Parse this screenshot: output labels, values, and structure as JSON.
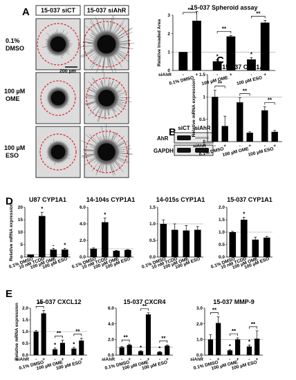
{
  "colors": {
    "bar": "#000000",
    "ref_line": "#999999",
    "dashed_circle": "#e02020",
    "micrograph_bg": "#dcdcdc"
  },
  "panel_labels": [
    "A",
    "B",
    "C",
    "D",
    "E"
  ],
  "panel_a": {
    "column_headers": [
      "15-037 siCT",
      "15-037 siAhR"
    ],
    "row_labels": [
      [
        "0.1%",
        "DMSO"
      ],
      [
        "100 µM",
        "OME"
      ],
      [
        "100 µM",
        "ESO"
      ]
    ],
    "scale_bar": "200 µm"
  },
  "panel_b": {
    "columns": [
      "siCT",
      "siAhR"
    ],
    "rows": [
      "AhR",
      "GAPDH"
    ]
  },
  "chart_data": [
    {
      "id": "spheroid",
      "type": "bar",
      "title": "15-037 Spheroid  assay",
      "ylabel": "Relative Invaded Area",
      "ylim": [
        0,
        3
      ],
      "yticks": [
        0,
        1,
        2,
        3
      ],
      "refline": 1,
      "groups": [
        "0.1% DMSO",
        "100 µM OME",
        "100 µM ESO"
      ],
      "si_label": "siAhR",
      "si_marks": [
        "-",
        "+"
      ],
      "values": [
        1.0,
        2.7,
        0.5,
        1.85,
        0.6,
        2.6
      ],
      "errors": [
        0,
        0.5,
        0.08,
        0.05,
        0.1,
        0.12
      ],
      "stars": [
        "",
        "",
        "*",
        "",
        "*",
        ""
      ],
      "brackets": [
        {
          "from": 0,
          "to": 1,
          "label": "**"
        },
        {
          "from": 2,
          "to": 3,
          "label": "**"
        },
        {
          "from": 4,
          "to": 5,
          "label": "**"
        }
      ]
    },
    {
      "id": "c_cyp1a1",
      "type": "bar",
      "title": "15-037 CYP1A1",
      "ylabel": "Relative mRNA expression",
      "ylim": [
        0,
        1.5
      ],
      "yticks": [
        0,
        0.5,
        1,
        1.5
      ],
      "refline": 1,
      "groups": [
        "0.1% DMSO",
        "100 µM OME",
        "100 µM ESO"
      ],
      "si_label": "siAhR",
      "si_marks": [
        "-",
        "+"
      ],
      "values": [
        1.0,
        0.35,
        0.88,
        0.2,
        0.7,
        0.22
      ],
      "errors": [
        0.15,
        0.22,
        0.1,
        0.02,
        0.08,
        0.03
      ],
      "stars": [
        "",
        "",
        "",
        "",
        "",
        ""
      ],
      "brackets": [
        {
          "from": 0,
          "to": 1,
          "label": "**"
        },
        {
          "from": 2,
          "to": 3,
          "label": "**"
        },
        {
          "from": 4,
          "to": 5,
          "label": "**"
        }
      ]
    },
    {
      "id": "d_u87",
      "type": "bar",
      "title": "U87 CYP1A1",
      "ylabel": "Relative mRNA expression",
      "ylim": [
        0,
        20
      ],
      "yticks": [
        0,
        5,
        10,
        15,
        20
      ],
      "refline": 1,
      "categories": [
        "0.1% DMSO",
        "10 nM TCDD",
        "100 µM OME",
        "100 µM ESO"
      ],
      "values": [
        1.0,
        16.5,
        3.0,
        3.0
      ],
      "errors": [
        0,
        1.5,
        0.5,
        0.5
      ],
      "stars": [
        "",
        "*",
        "-",
        "*"
      ]
    },
    {
      "id": "d_14104s",
      "type": "bar",
      "title": "14-104s CYP1A1",
      "ylim": [
        0,
        6
      ],
      "yticks": [
        0.0,
        2.0,
        4.0,
        6.0
      ],
      "tick_decimals": 1,
      "refline": 1,
      "categories": [
        "0.1% DMSO",
        "10 nM TCDD",
        "100 µM OME",
        "100 µM ESO"
      ],
      "values": [
        1.0,
        4.2,
        0.75,
        0.85
      ],
      "errors": [
        0.1,
        0.5,
        0.05,
        0.05
      ],
      "stars": [
        "",
        "*",
        "",
        ""
      ]
    },
    {
      "id": "d_14015s",
      "type": "bar",
      "title": "14-015s CYP1A1",
      "ylim": [
        0,
        1.5
      ],
      "yticks": [
        0.0,
        0.5,
        1.0,
        1.5
      ],
      "tick_decimals": 1,
      "refline": 1,
      "categories": [
        "0.1% DMSO",
        "10 nM TCDD",
        "100 µM OME",
        "100 µM ESO"
      ],
      "values": [
        1.0,
        0.82,
        0.8,
        0.82
      ],
      "errors": [
        0.12,
        0.18,
        0.15,
        0.1
      ],
      "stars": [
        "",
        "",
        "",
        ""
      ]
    },
    {
      "id": "d_15037",
      "type": "bar",
      "title": "15-037 CYP1A1",
      "ylim": [
        0,
        2
      ],
      "yticks": [
        0.0,
        0.5,
        1.0,
        1.5,
        2.0
      ],
      "tick_decimals": 1,
      "refline": 1,
      "categories": [
        "0.1% DMSO",
        "10 nM TCDD",
        "100 µM OME",
        "100 µM ESO"
      ],
      "values": [
        1.0,
        1.5,
        0.7,
        0.78
      ],
      "errors": [
        0.03,
        0.1,
        0.1,
        0.05
      ],
      "stars": [
        "",
        "*",
        "",
        ""
      ]
    },
    {
      "id": "e_cxcl12",
      "type": "bar",
      "title": "15-037 CXCL12",
      "ylabel": "Relative mRNA expression",
      "ylim": [
        0,
        2
      ],
      "yticks": [
        0.0,
        0.5,
        1.0,
        1.5,
        2.0
      ],
      "tick_decimals": 1,
      "refline": 1,
      "groups": [
        "0.1% DMSO",
        "100 µM OME",
        "100 µM ESO"
      ],
      "si_label": "siAhR",
      "si_marks": [
        "-",
        "+"
      ],
      "values": [
        1.0,
        1.78,
        0.25,
        0.52,
        0.28,
        0.62
      ],
      "errors": [
        0.05,
        0.12,
        0.05,
        0.12,
        0.05,
        0.1
      ],
      "stars": [
        "",
        "",
        "*",
        "",
        "*",
        ""
      ],
      "brackets": [
        {
          "from": 0,
          "to": 1,
          "label": "**"
        },
        {
          "from": 2,
          "to": 3,
          "label": "**"
        },
        {
          "from": 4,
          "to": 5,
          "label": "**"
        }
      ]
    },
    {
      "id": "e_cxcr4",
      "type": "bar",
      "title": "15-037 CXCR4",
      "ylim": [
        0,
        6
      ],
      "yticks": [
        0.0,
        2.0,
        4.0,
        6.0
      ],
      "tick_decimals": 1,
      "refline": 1,
      "groups": [
        "0.1% DMSO",
        "100 µM OME",
        "100 µM ESO"
      ],
      "si_label": "siAhR",
      "si_marks": [
        "-",
        "+"
      ],
      "values": [
        1.0,
        1.3,
        0.5,
        5.2,
        0.4,
        1.2
      ],
      "errors": [
        0.1,
        0.1,
        0.05,
        0.2,
        0.05,
        0.1
      ],
      "stars": [
        "",
        "",
        "*",
        "",
        "*",
        ""
      ],
      "brackets": [
        {
          "from": 0,
          "to": 1,
          "label": "**"
        },
        {
          "from": 2,
          "to": 3,
          "label": "**"
        },
        {
          "from": 4,
          "to": 5,
          "label": "**"
        }
      ]
    },
    {
      "id": "e_mmp9",
      "type": "bar",
      "title": "15-037 MMP-9",
      "ylim": [
        0,
        3
      ],
      "yticks": [
        0.0,
        1.0,
        2.0,
        3.0
      ],
      "tick_decimals": 1,
      "refline": 1,
      "groups": [
        "0.1% DMSO",
        "100 µM OME",
        "100 µM ESO"
      ],
      "si_label": "siAhR",
      "si_marks": [
        "-",
        "+"
      ],
      "values": [
        1.0,
        2.05,
        0.3,
        1.0,
        0.55,
        1.05
      ],
      "errors": [
        0.3,
        0.4,
        0.05,
        0.1,
        0.1,
        0.5
      ],
      "stars": [
        "",
        "",
        "*",
        "",
        "*",
        ""
      ],
      "brackets": [
        {
          "from": 0,
          "to": 1,
          "label": "**"
        },
        {
          "from": 2,
          "to": 3,
          "label": "**"
        },
        {
          "from": 4,
          "to": 5,
          "label": "**"
        }
      ]
    }
  ]
}
